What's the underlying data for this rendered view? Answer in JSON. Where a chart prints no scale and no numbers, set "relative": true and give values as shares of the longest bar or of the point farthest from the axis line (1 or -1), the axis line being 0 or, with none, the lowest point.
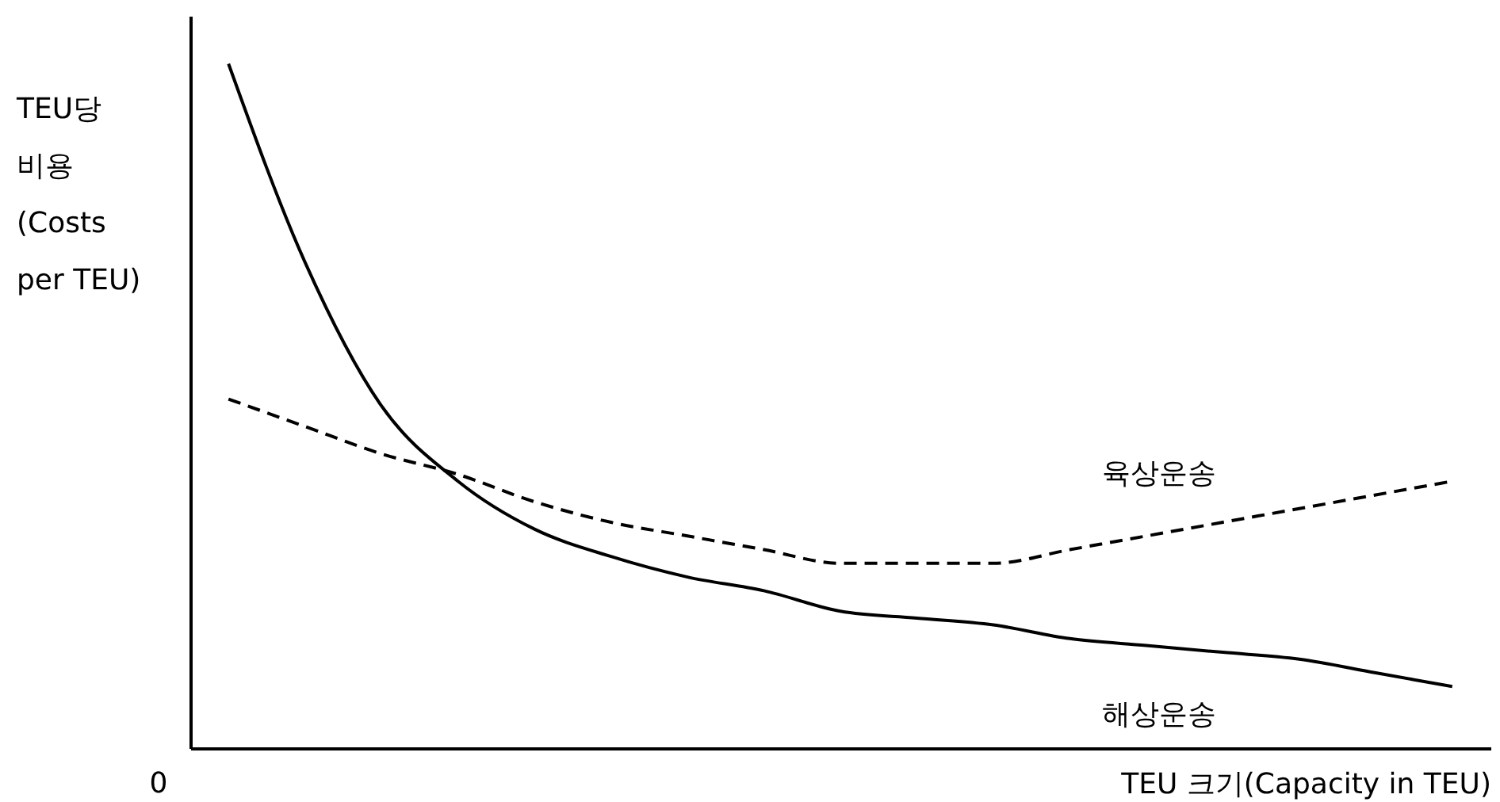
{
  "chart_data": {
    "type": "line",
    "relative": true,
    "xlabel": "TEU 크기(Capacity in TEU)",
    "ylabel": "TEU당\n비용\n(Costs\nper TEU)",
    "categories": [
      null,
      null,
      null,
      null,
      null,
      null,
      null,
      null,
      null,
      null,
      null,
      null,
      null,
      null,
      null,
      null,
      null
    ],
    "series": [
      {
        "name": "해상운송",
        "color": "#000000",
        "line_style": "solid",
        "values": [
          1,
          0.71,
          0.5,
          0.39,
          0.32,
          0.28,
          0.25,
          0.23,
          0.2,
          0.19,
          0.18,
          0.16,
          0.15,
          0.14,
          0.13,
          0.11,
          0.09
        ]
      },
      {
        "name": "육상운송",
        "color": "#000000",
        "line_style": "dashed",
        "values": [
          0.51,
          0.47,
          0.43,
          0.4,
          0.36,
          0.33,
          0.31,
          0.29,
          0.27,
          0.27,
          0.27,
          0.29,
          0.31,
          0.33,
          0.35,
          0.37,
          0.39
        ]
      }
    ],
    "annotations": [
      "0"
    ],
    "grid": false
  }
}
